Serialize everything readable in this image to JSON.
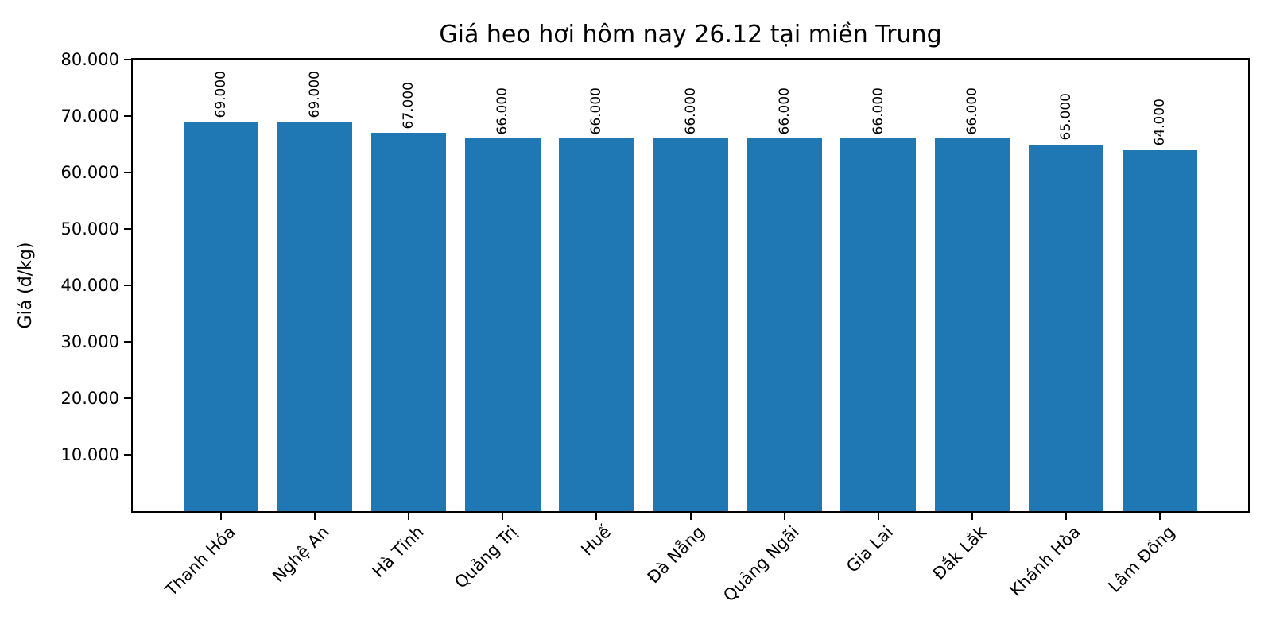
{
  "chart_data": {
    "type": "bar",
    "title": "Giá heo hơi hôm nay 26.12 tại miền Trung",
    "xlabel": "",
    "ylabel": "Giá (đ/kg)",
    "categories": [
      "Thanh Hóa",
      "Nghệ An",
      "Hà Tĩnh",
      "Quảng Trị",
      "Huế",
      "Đà Nẵng",
      "Quảng Ngãi",
      "Gia Lai",
      "Đắk Lắk",
      "Khánh Hòa",
      "Lâm Đồng"
    ],
    "values": [
      69000,
      69000,
      67000,
      66000,
      66000,
      66000,
      66000,
      66000,
      66000,
      65000,
      64000
    ],
    "bar_value_labels": [
      "69.000",
      "69.000",
      "67.000",
      "66.000",
      "66.000",
      "66.000",
      "66.000",
      "66.000",
      "66.000",
      "65.000",
      "64.000"
    ],
    "yticks": [
      10000,
      20000,
      30000,
      40000,
      50000,
      60000,
      70000,
      80000
    ],
    "ytick_labels": [
      "10.000",
      "20.000",
      "30.000",
      "40.000",
      "50.000",
      "60.000",
      "70.000",
      "80.000"
    ],
    "ylim": [
      0,
      80000
    ],
    "bar_color": "#1f77b4",
    "axis_color": "#000000",
    "background_color": "#ffffff",
    "grid": false,
    "legend_position": "none"
  }
}
